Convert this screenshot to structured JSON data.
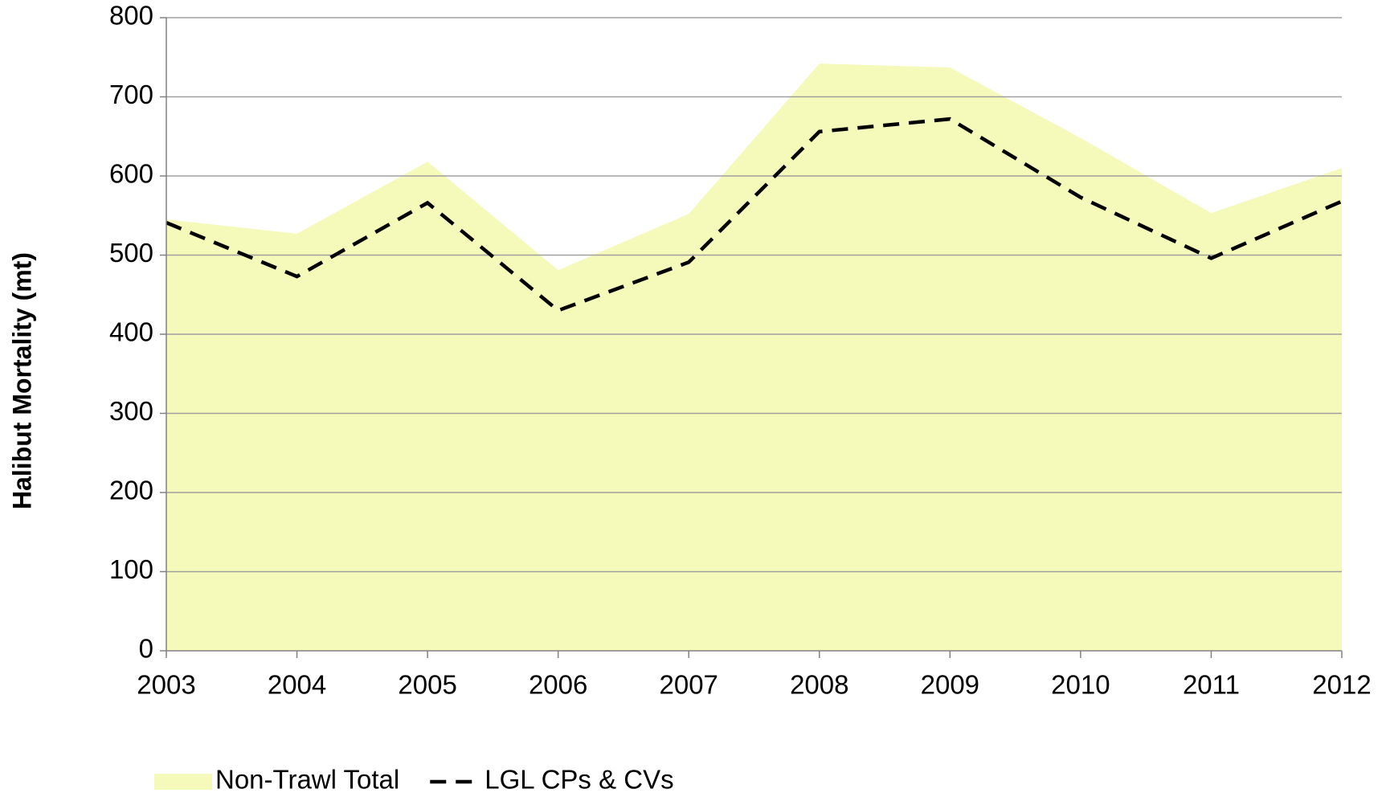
{
  "chart_data": {
    "type": "area",
    "y_label": "Halibut Mortality (mt)",
    "categories": [
      "2003",
      "2004",
      "2005",
      "2006",
      "2007",
      "2008",
      "2009",
      "2010",
      "2011",
      "2012"
    ],
    "series": [
      {
        "name": "Non-Trawl Total",
        "type": "area",
        "color": "#f5f9b9",
        "values": [
          545,
          527,
          618,
          481,
          552,
          742,
          737,
          648,
          553,
          610
        ]
      },
      {
        "name": "LGL CPs & CVs",
        "type": "line",
        "dashed": true,
        "color": "#000000",
        "values": [
          541,
          473,
          566,
          430,
          491,
          656,
          672,
          573,
          496,
          568
        ]
      }
    ],
    "ylim": [
      0,
      800
    ],
    "yticks": [
      0,
      100,
      200,
      300,
      400,
      500,
      600,
      700,
      800
    ],
    "grid": true,
    "legend": "bottom"
  }
}
